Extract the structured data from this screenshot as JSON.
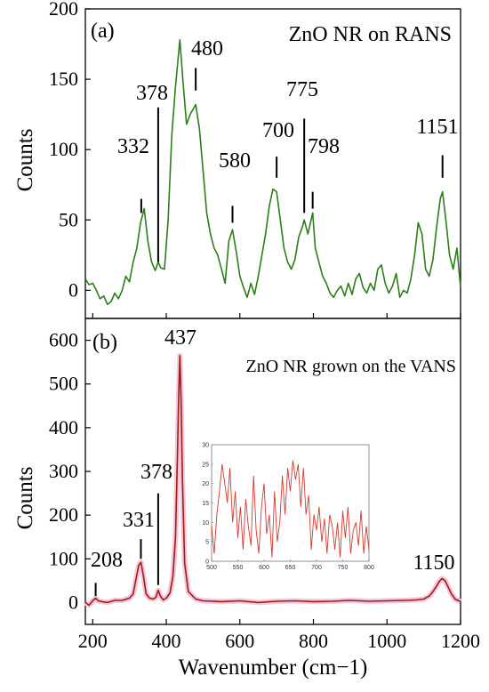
{
  "chart_data": [
    {
      "type": "line",
      "panel_label": "(a)",
      "title": "ZnO NR on RANS",
      "xlabel": "Wavenumber (cm−1)",
      "ylabel": "Counts",
      "xlim": [
        180,
        1200
      ],
      "ylim": [
        -20,
        200
      ],
      "x_ticks": [
        200,
        400,
        600,
        800,
        1000,
        1200
      ],
      "y_ticks": [
        0,
        50,
        100,
        150,
        200
      ],
      "color": "#2e7d1c",
      "series": [
        {
          "x": [
            180,
            190,
            200,
            210,
            220,
            230,
            240,
            250,
            260,
            270,
            280,
            290,
            300,
            310,
            320,
            330,
            340,
            350,
            360,
            370,
            378,
            385,
            395,
            405,
            415,
            425,
            437,
            445,
            455,
            465,
            480,
            490,
            500,
            510,
            520,
            530,
            540,
            550,
            560,
            570,
            580,
            590,
            600,
            610,
            620,
            630,
            640,
            650,
            660,
            670,
            680,
            690,
            700,
            710,
            720,
            730,
            740,
            750,
            760,
            770,
            775,
            785,
            798,
            805,
            815,
            825,
            835,
            845,
            855,
            865,
            875,
            885,
            895,
            905,
            915,
            925,
            935,
            945,
            955,
            965,
            975,
            985,
            995,
            1005,
            1015,
            1025,
            1035,
            1045,
            1055,
            1065,
            1075,
            1085,
            1095,
            1105,
            1115,
            1125,
            1135,
            1145,
            1151,
            1160,
            1170,
            1180,
            1190,
            1200
          ],
          "y": [
            8,
            4,
            5,
            0,
            -6,
            -4,
            -10,
            -8,
            -2,
            -6,
            0,
            10,
            6,
            20,
            30,
            48,
            58,
            35,
            20,
            14,
            20,
            16,
            15,
            50,
            110,
            145,
            178,
            150,
            118,
            125,
            132,
            115,
            85,
            55,
            40,
            30,
            25,
            15,
            5,
            35,
            43,
            28,
            10,
            2,
            -5,
            5,
            -3,
            10,
            25,
            40,
            60,
            72,
            70,
            50,
            30,
            20,
            15,
            22,
            38,
            45,
            50,
            40,
            55,
            30,
            20,
            10,
            5,
            -2,
            -5,
            0,
            3,
            -4,
            5,
            -3,
            8,
            12,
            2,
            -2,
            5,
            0,
            15,
            18,
            5,
            -2,
            3,
            12,
            -5,
            0,
            -2,
            8,
            25,
            48,
            40,
            15,
            10,
            22,
            45,
            65,
            70,
            50,
            25,
            15,
            30,
            2
          ]
        }
      ],
      "peak_labels": [
        "332",
        "378",
        "480",
        "580",
        "700",
        "775",
        "798",
        "1151"
      ]
    },
    {
      "type": "line",
      "panel_label": "(b)",
      "title": "ZnO NR grown on the VANS",
      "xlabel": "Wavenumber (cm−1)",
      "ylabel": "Counts",
      "xlim": [
        180,
        1200
      ],
      "ylim": [
        -50,
        650
      ],
      "x_ticks": [
        200,
        400,
        600,
        800,
        1000,
        1200
      ],
      "y_ticks": [
        0,
        100,
        200,
        300,
        400,
        500,
        600
      ],
      "color": "#a51a14",
      "series": [
        {
          "x": [
            180,
            190,
            200,
            208,
            215,
            225,
            240,
            260,
            280,
            300,
            310,
            318,
            325,
            331,
            338,
            345,
            355,
            365,
            372,
            378,
            384,
            392,
            400,
            410,
            418,
            425,
            430,
            434,
            437,
            440,
            444,
            450,
            460,
            480,
            500,
            550,
            600,
            650,
            700,
            750,
            800,
            850,
            900,
            950,
            1000,
            1050,
            1080,
            1100,
            1115,
            1125,
            1135,
            1142,
            1150,
            1158,
            1165,
            1175,
            1185,
            1200
          ],
          "y": [
            0,
            -6,
            4,
            10,
            4,
            2,
            0,
            5,
            5,
            10,
            20,
            55,
            85,
            92,
            60,
            20,
            10,
            8,
            12,
            28,
            15,
            6,
            10,
            22,
            60,
            150,
            320,
            480,
            565,
            470,
            280,
            90,
            25,
            8,
            4,
            2,
            4,
            0,
            3,
            4,
            2,
            3,
            5,
            3,
            4,
            5,
            6,
            8,
            15,
            25,
            38,
            48,
            55,
            50,
            38,
            20,
            8,
            2
          ]
        }
      ],
      "peak_labels": [
        "208",
        "331",
        "378",
        "437",
        "1150"
      ],
      "inset": {
        "xlim": [
          500,
          800
        ],
        "ylim": [
          0,
          30
        ],
        "x_ticks": [
          "500",
          "550",
          "600",
          "650",
          "700",
          "750",
          "800"
        ],
        "y_ticks": [
          "0",
          "5",
          "10",
          "15",
          "20",
          "25",
          "30"
        ],
        "color": "#d63a2f",
        "series": {
          "x": [
            500,
            505,
            510,
            515,
            520,
            525,
            530,
            535,
            540,
            545,
            550,
            555,
            560,
            565,
            570,
            575,
            580,
            585,
            590,
            595,
            600,
            605,
            610,
            615,
            620,
            625,
            630,
            635,
            640,
            645,
            650,
            655,
            660,
            665,
            670,
            675,
            680,
            685,
            690,
            695,
            700,
            705,
            710,
            715,
            720,
            725,
            730,
            735,
            740,
            745,
            750,
            755,
            760,
            765,
            770,
            775,
            780,
            785,
            790,
            795,
            800
          ],
          "y": [
            9,
            2,
            12,
            18,
            25,
            20,
            15,
            24,
            10,
            18,
            6,
            14,
            3,
            16,
            9,
            4,
            22,
            8,
            2,
            14,
            20,
            7,
            12,
            1,
            18,
            5,
            10,
            22,
            12,
            24,
            18,
            26,
            21,
            25,
            14,
            24,
            12,
            17,
            3,
            12,
            8,
            14,
            5,
            11,
            2,
            12,
            9,
            3,
            10,
            1,
            13,
            6,
            14,
            2,
            8,
            10,
            4,
            13,
            2,
            9,
            3
          ]
        }
      }
    }
  ]
}
